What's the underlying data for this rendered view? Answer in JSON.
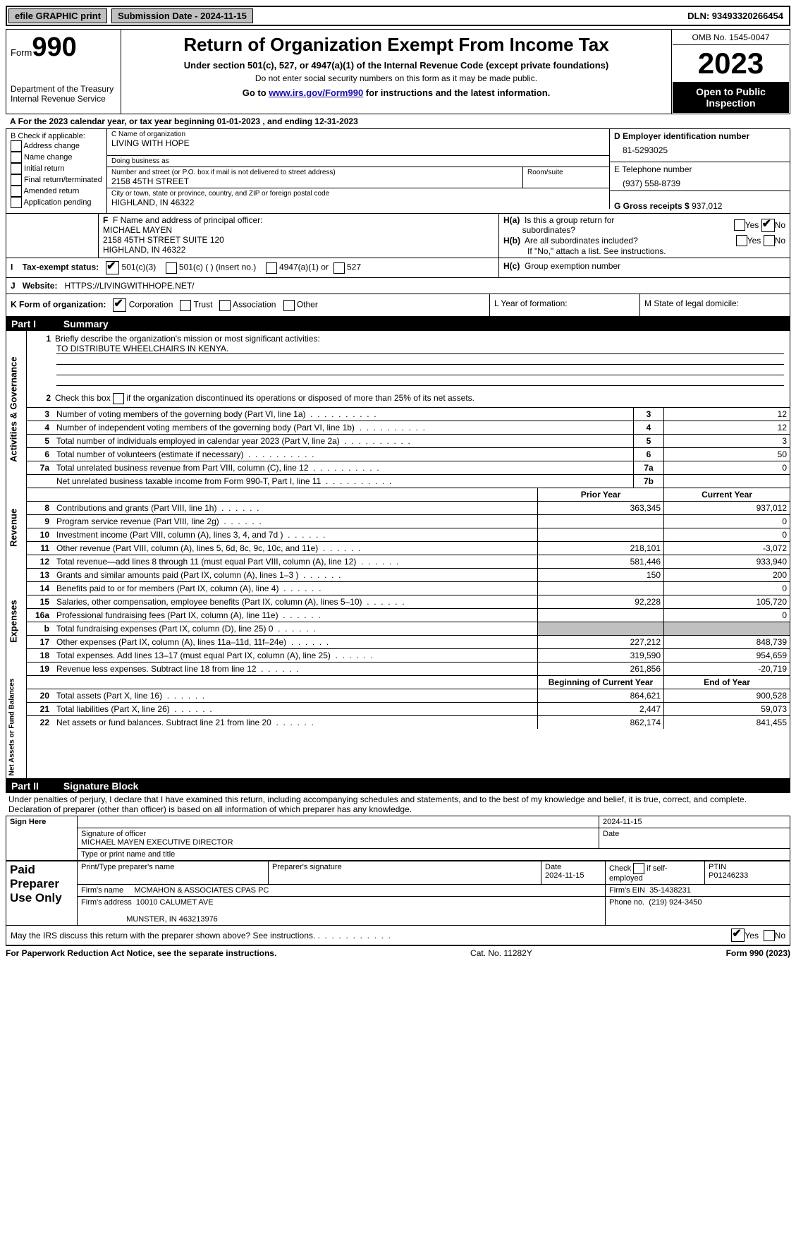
{
  "topbar": {
    "efile": "efile GRAPHIC print",
    "submission": "Submission Date - 2024-11-15",
    "dln": "DLN: 93493320266454"
  },
  "header": {
    "form_word": "Form",
    "form_num": "990",
    "dept": "Department of the Treasury",
    "irs": "Internal Revenue Service",
    "title": "Return of Organization Exempt From Income Tax",
    "sub": "Under section 501(c), 527, or 4947(a)(1) of the Internal Revenue Code (except private foundations)",
    "ssn": "Do not enter social security numbers on this form as it may be made public.",
    "goto_pre": "Go to ",
    "goto_link": "www.irs.gov/Form990",
    "goto_post": " for instructions and the latest information.",
    "omb": "OMB No. 1545-0047",
    "year": "2023",
    "open": "Open to Public Inspection"
  },
  "lineA": "For the 2023 calendar year, or tax year beginning 01-01-2023    , and ending 12-31-2023",
  "boxB": {
    "hdr": "B Check if applicable:",
    "items": [
      "Address change",
      "Name change",
      "Initial return",
      "Final return/terminated",
      "Amended return",
      "Application pending"
    ]
  },
  "boxC": {
    "name_lbl": "C Name of organization",
    "name": "LIVING WITH HOPE",
    "dba_lbl": "Doing business as",
    "dba": "",
    "addr_lbl": "Number and street (or P.O. box if mail is not delivered to street address)",
    "room_lbl": "Room/suite",
    "addr": "2158 45TH STREET",
    "city_lbl": "City or town, state or province, country, and ZIP or foreign postal code",
    "city": "HIGHLAND, IN  46322"
  },
  "boxD": {
    "lbl": "D Employer identification number",
    "val": "81-5293025"
  },
  "boxE": {
    "lbl": "E Telephone number",
    "val": "(937) 558-8739"
  },
  "boxG": {
    "lbl": "G Gross receipts $",
    "val": "937,012"
  },
  "boxF": {
    "lbl": "F  Name and address of principal officer:",
    "l1": "MICHAEL MAYEN",
    "l2": "2158 45TH STREET SUITE 120",
    "l3": "HIGHLAND, IN  46322"
  },
  "boxH": {
    "a_lbl": "H(a)  Is this a group return for subordinates?",
    "b_lbl": "H(b)  Are all subordinates included?",
    "b_note": "If \"No,\" attach a list. See instructions.",
    "c_lbl": "H(c)  Group exemption number",
    "yes": "Yes",
    "no": "No"
  },
  "boxI": {
    "lbl": "Tax-exempt status:",
    "o1": "501(c)(3)",
    "o2": "501(c) (  ) (insert no.)",
    "o3": "4947(a)(1) or",
    "o4": "527"
  },
  "boxJ": {
    "lbl": "Website:",
    "val": "HTTPS://LIVINGWITHHOPE.NET/"
  },
  "boxK": {
    "lbl": "K Form of organization:",
    "o1": "Corporation",
    "o2": "Trust",
    "o3": "Association",
    "o4": "Other"
  },
  "boxL": "L Year of formation:",
  "boxM": "M State of legal domicile:",
  "part1": {
    "num": "Part I",
    "title": "Summary"
  },
  "summary": {
    "q1_lbl": "Briefly describe the organization's mission or most significant activities:",
    "q1_val": "TO DISTRIBUTE WHEELCHAIRS IN KENYA.",
    "q2": "Check this box      if the organization discontinued its operations or disposed of more than 25% of its net assets.",
    "rows_gov": [
      {
        "n": "3",
        "d": "Number of voting members of the governing body (Part VI, line 1a)",
        "b": "3",
        "v": "12"
      },
      {
        "n": "4",
        "d": "Number of independent voting members of the governing body (Part VI, line 1b)",
        "b": "4",
        "v": "12"
      },
      {
        "n": "5",
        "d": "Total number of individuals employed in calendar year 2023 (Part V, line 2a)",
        "b": "5",
        "v": "3"
      },
      {
        "n": "6",
        "d": "Total number of volunteers (estimate if necessary)",
        "b": "6",
        "v": "50"
      },
      {
        "n": "7a",
        "d": "Total unrelated business revenue from Part VIII, column (C), line 12",
        "b": "7a",
        "v": "0"
      },
      {
        "n": "",
        "d": "Net unrelated business taxable income from Form 990-T, Part I, line 11",
        "b": "7b",
        "v": ""
      }
    ],
    "col_prior": "Prior Year",
    "col_curr": "Current Year",
    "rows_rev": [
      {
        "n": "8",
        "d": "Contributions and grants (Part VIII, line 1h)",
        "p": "363,345",
        "c": "937,012"
      },
      {
        "n": "9",
        "d": "Program service revenue (Part VIII, line 2g)",
        "p": "",
        "c": "0"
      },
      {
        "n": "10",
        "d": "Investment income (Part VIII, column (A), lines 3, 4, and 7d )",
        "p": "",
        "c": "0"
      },
      {
        "n": "11",
        "d": "Other revenue (Part VIII, column (A), lines 5, 6d, 8c, 9c, 10c, and 11e)",
        "p": "218,101",
        "c": "-3,072"
      },
      {
        "n": "12",
        "d": "Total revenue—add lines 8 through 11 (must equal Part VIII, column (A), line 12)",
        "p": "581,446",
        "c": "933,940"
      }
    ],
    "rows_exp": [
      {
        "n": "13",
        "d": "Grants and similar amounts paid (Part IX, column (A), lines 1–3 )",
        "p": "150",
        "c": "200"
      },
      {
        "n": "14",
        "d": "Benefits paid to or for members (Part IX, column (A), line 4)",
        "p": "",
        "c": "0"
      },
      {
        "n": "15",
        "d": "Salaries, other compensation, employee benefits (Part IX, column (A), lines 5–10)",
        "p": "92,228",
        "c": "105,720"
      },
      {
        "n": "16a",
        "d": "Professional fundraising fees (Part IX, column (A), line 11e)",
        "p": "",
        "c": "0"
      },
      {
        "n": "b",
        "d": "Total fundraising expenses (Part IX, column (D), line 25) 0",
        "p": "SHADE",
        "c": "SHADE"
      },
      {
        "n": "17",
        "d": "Other expenses (Part IX, column (A), lines 11a–11d, 11f–24e)",
        "p": "227,212",
        "c": "848,739"
      },
      {
        "n": "18",
        "d": "Total expenses. Add lines 13–17 (must equal Part IX, column (A), line 25)",
        "p": "319,590",
        "c": "954,659"
      },
      {
        "n": "19",
        "d": "Revenue less expenses. Subtract line 18 from line 12",
        "p": "261,856",
        "c": "-20,719"
      }
    ],
    "col_beg": "Beginning of Current Year",
    "col_end": "End of Year",
    "rows_net": [
      {
        "n": "20",
        "d": "Total assets (Part X, line 16)",
        "p": "864,621",
        "c": "900,528"
      },
      {
        "n": "21",
        "d": "Total liabilities (Part X, line 26)",
        "p": "2,447",
        "c": "59,073"
      },
      {
        "n": "22",
        "d": "Net assets or fund balances. Subtract line 21 from line 20",
        "p": "862,174",
        "c": "841,455"
      }
    ],
    "vlabels": {
      "gov": "Activities & Governance",
      "rev": "Revenue",
      "exp": "Expenses",
      "net": "Net Assets or Fund Balances"
    }
  },
  "part2": {
    "num": "Part II",
    "title": "Signature Block"
  },
  "sig": {
    "decl": "Under penalties of perjury, I declare that I have examined this return, including accompanying schedules and statements, and to the best of my knowledge and belief, it is true, correct, and complete. Declaration of preparer (other than officer) is based on all information of which preparer has any knowledge.",
    "sign_here": "Sign Here",
    "date": "2024-11-15",
    "sig_lbl": "Signature of officer",
    "officer": "MICHAEL MAYEN  EXECUTIVE DIRECTOR",
    "type_lbl": "Type or print name and title",
    "date_lbl": "Date",
    "paid": "Paid Preparer Use Only",
    "prep_name_lbl": "Print/Type preparer's name",
    "prep_sig_lbl": "Preparer's signature",
    "prep_date": "2024-11-15",
    "self_lbl": "Check         if self-employed",
    "ptin_lbl": "PTIN",
    "ptin": "P01246233",
    "firm_name_lbl": "Firm's name",
    "firm_name": "MCMAHON & ASSOCIATES CPAS PC",
    "firm_ein_lbl": "Firm's EIN",
    "firm_ein": "35-1438231",
    "firm_addr_lbl": "Firm's address",
    "firm_addr1": "10010 CALUMET AVE",
    "firm_addr2": "MUNSTER, IN  463213976",
    "phone_lbl": "Phone no.",
    "phone": "(219) 924-3450",
    "discuss": "May the IRS discuss this return with the preparer shown above? See instructions.",
    "yes": "Yes",
    "no": "No"
  },
  "footer": {
    "left": "For Paperwork Reduction Act Notice, see the separate instructions.",
    "mid": "Cat. No. 11282Y",
    "right_a": "Form ",
    "right_b": "990",
    "right_c": " (2023)"
  }
}
